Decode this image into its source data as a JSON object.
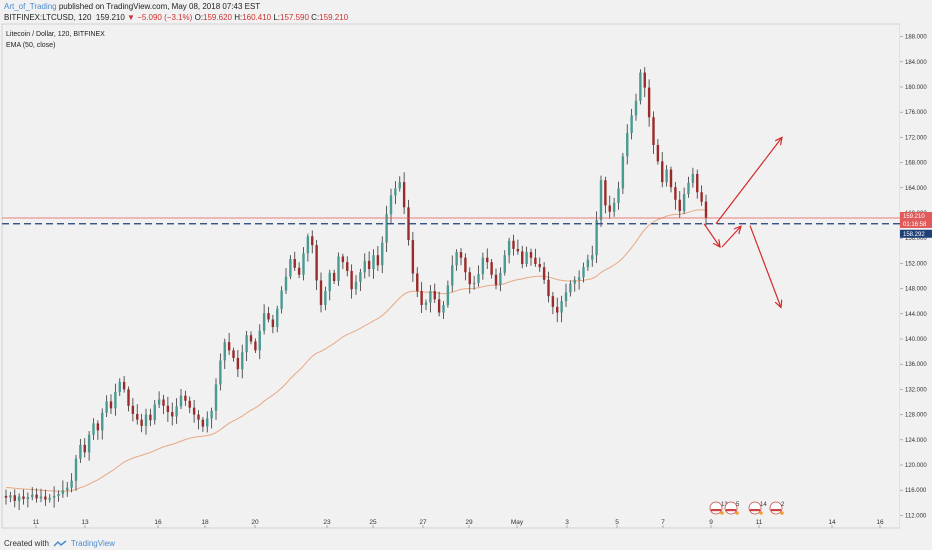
{
  "header": {
    "author": "Art_of_Trading",
    "published": "published on TradingView.com, May 08, 2018 07:43 EST",
    "symbol": "BITFINEX:LTCUSD, 120",
    "price": "159.210",
    "change": "▼ −5.090 (−3.1%)",
    "open_label": "O:",
    "open": "159.620",
    "high_label": "H:",
    "high": "160.410",
    "low_label": "L:",
    "low": "157.590",
    "close_label": "C:",
    "close": "159.210"
  },
  "legend": {
    "title": "Litecoin / Dollar, 120, BITFINEX",
    "indicator": "EMA (50, close)"
  },
  "footer": {
    "created_with": "Created with",
    "brand": "TradingView"
  },
  "colors": {
    "up": "#4a9a92",
    "down": "#9b2b2b",
    "wick": "#333333",
    "ema": "#e8a983",
    "support": "#1f3f7a",
    "arrow": "#d42a2a",
    "priceline": "#e45757"
  },
  "price_labels": {
    "last": "159.210",
    "countdown": "01:16:58",
    "support": "158.292"
  },
  "chart_data": {
    "type": "candlestick",
    "ylim": [
      110,
      190
    ],
    "y_ticks": [
      112,
      116,
      120,
      124,
      128,
      132,
      136,
      140,
      144,
      148,
      152,
      156,
      160,
      164,
      168,
      172,
      176,
      180,
      184,
      188
    ],
    "x_ticks": [
      "11",
      "13",
      "16",
      "18",
      "20",
      "23",
      "25",
      "27",
      "29",
      "May",
      "3",
      "5",
      "7",
      "9",
      "11",
      "14",
      "16"
    ],
    "support_level": 158.292,
    "last_price": 159.21,
    "closes": [
      114.8,
      115.2,
      114.3,
      115.0,
      114.6,
      114.9,
      115.3,
      114.7,
      115.0,
      114.5,
      114.8,
      115.1,
      115.4,
      116.0,
      116.4,
      117.5,
      121.0,
      123.2,
      122.0,
      124.8,
      126.6,
      125.5,
      128.3,
      130.1,
      129.0,
      131.6,
      133.2,
      132.0,
      129.4,
      128.1,
      127.2,
      126.2,
      128.0,
      127.1,
      129.6,
      130.4,
      129.4,
      128.4,
      127.7,
      129.3,
      131.0,
      130.2,
      129.1,
      128.0,
      127.2,
      126.1,
      127.4,
      128.6,
      132.8,
      136.6,
      139.5,
      138.2,
      137.0,
      135.2,
      137.9,
      140.6,
      139.6,
      138.2,
      141.3,
      144.1,
      143.1,
      141.9,
      144.8,
      147.7,
      149.9,
      152.7,
      151.3,
      150.2,
      153.6,
      156.3,
      154.9,
      149.3,
      145.4,
      147.6,
      150.5,
      149.2,
      153.1,
      152.2,
      150.8,
      147.9,
      149.1,
      150.6,
      152.4,
      151.1,
      153.3,
      151.7,
      155.3,
      159.8,
      162.8,
      163.9,
      164.9,
      160.9,
      155.7,
      150.4,
      147.6,
      145.4,
      145.8,
      147.6,
      146.3,
      144.2,
      145.4,
      148.5,
      151.7,
      153.8,
      152.9,
      150.6,
      148.7,
      148.9,
      150.3,
      152.9,
      152.2,
      150.2,
      148.6,
      150.5,
      153.3,
      155.6,
      154.3,
      153.9,
      151.9,
      153.8,
      152.9,
      151.9,
      151.4,
      149.4,
      146.8,
      145.1,
      144.2,
      146.0,
      147.4,
      148.8,
      149.4,
      149.8,
      151.4,
      152.6,
      153.3,
      158.9,
      165.2,
      161.2,
      160.2,
      161.6,
      163.9,
      169.0,
      172.7,
      175.5,
      177.8,
      182.3,
      179.9,
      175.2,
      170.8,
      168.2,
      164.9,
      166.9,
      164.1,
      162.1,
      160.3,
      163.0,
      164.8,
      166.2,
      163.3,
      161.8,
      159.2
    ]
  }
}
